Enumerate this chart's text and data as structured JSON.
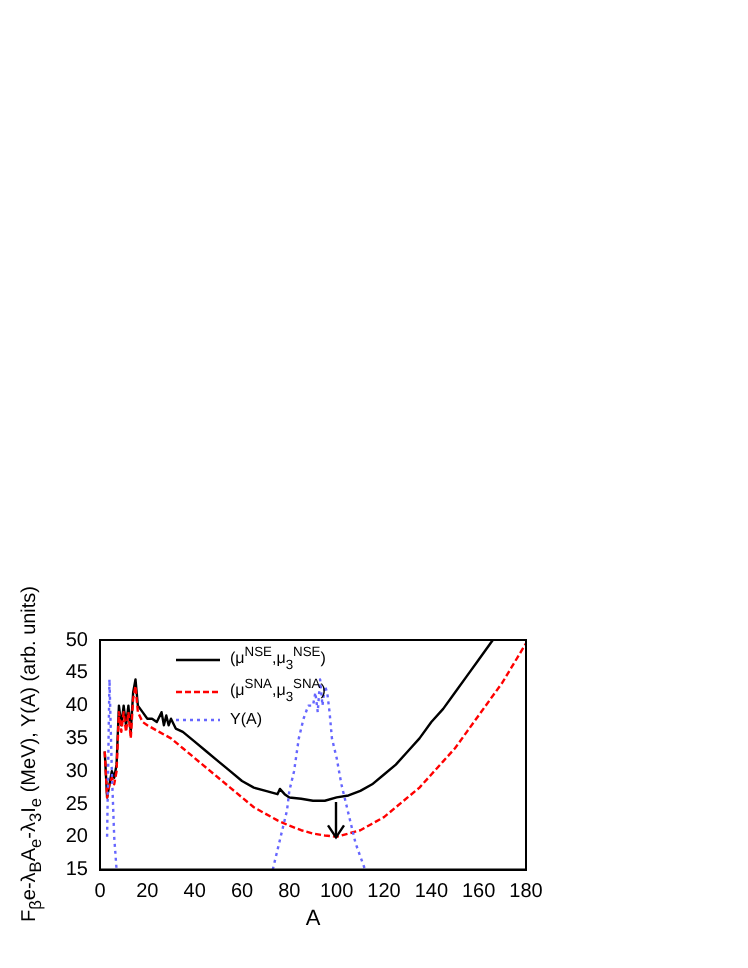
{
  "chart_data": {
    "type": "line",
    "xlabel": "A",
    "ylabel": "F$_{β}$e-λ$_{B}$A$_{e}$-λ$_{3}$I$_{e}$ (MeV), Y(A) (arb. units)",
    "xlim": [
      0,
      180
    ],
    "xticks": [
      0,
      20,
      40,
      60,
      80,
      100,
      120,
      140,
      160,
      180
    ],
    "ylim": [
      15,
      50
    ],
    "yticks": [
      15,
      20,
      25,
      30,
      35,
      40,
      45,
      50
    ],
    "grid": false,
    "legend": "top left",
    "marker": "none",
    "series": [
      {
        "name": "(μ$^{NSE}$,μ$_{3}$$^{NSE}$)",
        "color": "#000000",
        "line_style": "solid",
        "x": [
          2,
          3,
          4,
          5,
          6,
          7,
          8,
          9,
          10,
          11,
          12,
          13,
          14,
          15,
          16,
          18,
          20,
          22,
          24,
          26,
          27,
          28,
          29,
          30,
          32,
          35,
          40,
          45,
          50,
          55,
          60,
          65,
          70,
          75,
          76,
          78,
          80,
          85,
          90,
          95,
          100,
          105,
          110,
          115,
          120,
          125,
          130,
          135,
          140,
          145,
          150,
          155,
          160,
          165,
          166
        ],
        "values": [
          33,
          26,
          28,
          30,
          29,
          31,
          40,
          37,
          40,
          37,
          40,
          36,
          42,
          44,
          40,
          39,
          38,
          38,
          37.5,
          39,
          37,
          38.5,
          37,
          38,
          36.5,
          36,
          34.5,
          33,
          31.5,
          30,
          28.5,
          27.5,
          27,
          26.5,
          27.3,
          26.5,
          26,
          25.8,
          25.5,
          25.5,
          26,
          26.3,
          27,
          28,
          29.5,
          31,
          33,
          35,
          37.5,
          39.5,
          42,
          44.5,
          47,
          49.5,
          50
        ]
      },
      {
        "name": "(μ$^{SNA}$,μ$_{3}$$^{SNA}$)",
        "color": "#ff0000",
        "line_style": "dashed",
        "x": [
          2,
          3,
          4,
          5,
          6,
          7,
          8,
          9,
          10,
          11,
          12,
          13,
          14,
          15,
          16,
          18,
          20,
          25,
          30,
          35,
          40,
          45,
          50,
          55,
          60,
          65,
          70,
          75,
          80,
          85,
          90,
          95,
          100,
          105,
          110,
          115,
          120,
          125,
          130,
          135,
          140,
          145,
          150,
          155,
          160,
          165,
          170,
          175,
          180
        ],
        "values": [
          33,
          26,
          28,
          29,
          28,
          30,
          39,
          36,
          39,
          36,
          39,
          35,
          41,
          43,
          39,
          37.5,
          37,
          36,
          35,
          33.5,
          32,
          30.5,
          29,
          27.5,
          26,
          24.5,
          23.5,
          22.5,
          21.7,
          21,
          20.5,
          20.2,
          20,
          20.5,
          21,
          22,
          23,
          24.5,
          26,
          27.5,
          29.5,
          31.5,
          33.5,
          36,
          38.5,
          41,
          43.5,
          46.5,
          49.5
        ]
      },
      {
        "name": "Y(A)",
        "color": "#6666ff",
        "line_style": "dotted",
        "x": [
          3,
          4,
          5,
          6,
          7,
          40,
          73,
          75,
          77,
          79,
          80,
          82,
          84,
          86,
          88,
          90,
          91,
          92,
          93,
          94,
          95,
          96,
          97,
          98,
          100,
          102,
          104,
          106,
          108,
          110,
          112
        ],
        "values": [
          20,
          44,
          30,
          20,
          15,
          null,
          15,
          18,
          21,
          24,
          27,
          30,
          35,
          38,
          40,
          40,
          42,
          39,
          44,
          40,
          43,
          42,
          39,
          35,
          32,
          28,
          25,
          22,
          19,
          17,
          15
        ]
      }
    ]
  }
}
